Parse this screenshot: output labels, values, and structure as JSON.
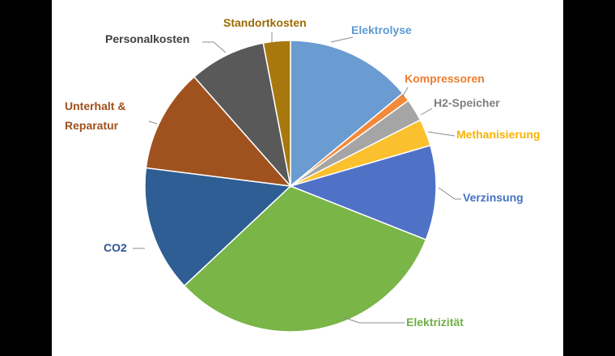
{
  "chart_data": {
    "type": "pie",
    "title": "",
    "slices": [
      {
        "label": "Elektrolyse",
        "value": 14,
        "color": "#6A9BD1",
        "label_color": "#5B9BD5"
      },
      {
        "label": "Kompressoren",
        "value": 1,
        "color": "#F28A3A",
        "label_color": "#ED7D31"
      },
      {
        "label": "H2-Speicher",
        "value": 2.5,
        "color": "#A5A5A5",
        "label_color": "#7F7F7F"
      },
      {
        "label": "Methanisierung",
        "value": 3,
        "color": "#FBC02D",
        "label_color": "#F9B200"
      },
      {
        "label": "Verzinsung",
        "value": 10.5,
        "color": "#4F72C6",
        "label_color": "#4472C4"
      },
      {
        "label": "Elektrizität",
        "value": 32,
        "color": "#79B547",
        "label_color": "#70AD47"
      },
      {
        "label": "CO2",
        "value": 14,
        "color": "#2E5E93",
        "label_color": "#2F5597"
      },
      {
        "label": "Unterhalt & Reparatur",
        "value": 11.5,
        "color": "#A0521E",
        "label_color": "#A0501E"
      },
      {
        "label": "Personalkosten",
        "value": 8.5,
        "color": "#595959",
        "label_color": "#404040"
      },
      {
        "label": "Standortkosten",
        "value": 3,
        "color": "#A8780F",
        "label_color": "#9C6B00"
      }
    ]
  }
}
